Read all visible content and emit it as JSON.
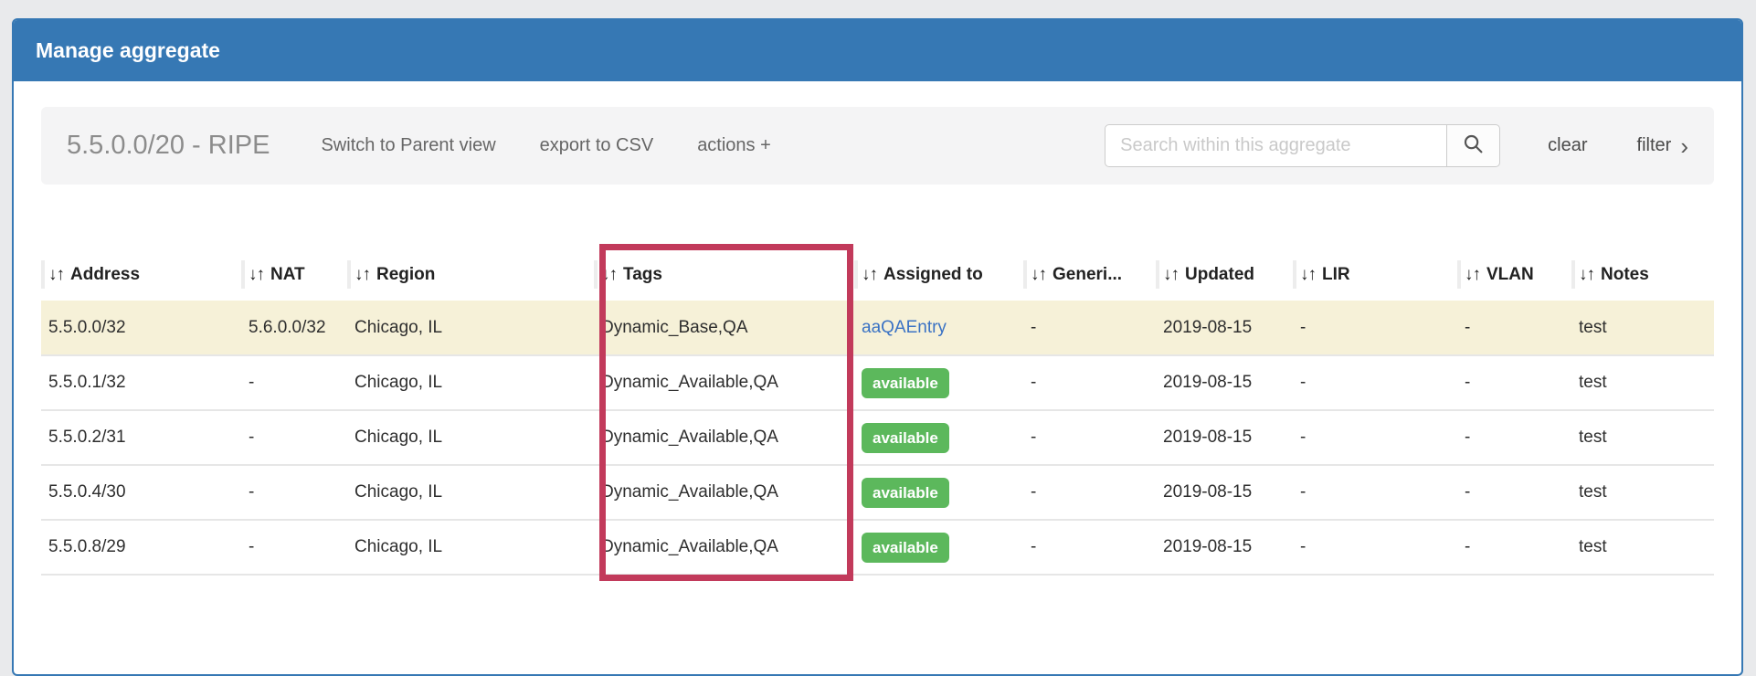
{
  "panel": {
    "title": "Manage aggregate"
  },
  "toolbar": {
    "aggregate_label": "5.5.0.0/20 - RIPE",
    "switch_view_label": "Switch to Parent view",
    "export_csv_label": "export to CSV",
    "actions_label": "actions +",
    "search_placeholder": "Search within this aggregate",
    "search_value": "",
    "clear_label": "clear",
    "filter_label": "filter",
    "filter_chevron": "›"
  },
  "table": {
    "sort_icon": "↓↑",
    "columns": [
      {
        "key": "address",
        "label": "Address"
      },
      {
        "key": "nat",
        "label": "NAT"
      },
      {
        "key": "region",
        "label": "Region"
      },
      {
        "key": "tags",
        "label": "Tags"
      },
      {
        "key": "assigned_to",
        "label": "Assigned to"
      },
      {
        "key": "generic",
        "label": "Generi..."
      },
      {
        "key": "updated",
        "label": "Updated"
      },
      {
        "key": "lir",
        "label": "LIR"
      },
      {
        "key": "vlan",
        "label": "VLAN"
      },
      {
        "key": "notes",
        "label": "Notes"
      }
    ],
    "rows": [
      {
        "highlighted": true,
        "cells": [
          {
            "text": "5.5.0.0/32"
          },
          {
            "text": "5.6.0.0/32"
          },
          {
            "text": "Chicago, IL"
          },
          {
            "text": "Dynamic_Base,QA"
          },
          {
            "type": "link",
            "text": "aaQAEntry"
          },
          {
            "text": "-"
          },
          {
            "text": "2019-08-15"
          },
          {
            "text": "-"
          },
          {
            "text": "-"
          },
          {
            "text": "test"
          }
        ]
      },
      {
        "highlighted": false,
        "cells": [
          {
            "text": "5.5.0.1/32"
          },
          {
            "text": "-"
          },
          {
            "text": "Chicago, IL"
          },
          {
            "text": "Dynamic_Available,QA"
          },
          {
            "type": "badge",
            "text": "available"
          },
          {
            "text": "-"
          },
          {
            "text": "2019-08-15"
          },
          {
            "text": "-"
          },
          {
            "text": "-"
          },
          {
            "text": "test"
          }
        ]
      },
      {
        "highlighted": false,
        "cells": [
          {
            "text": "5.5.0.2/31"
          },
          {
            "text": "-"
          },
          {
            "text": "Chicago, IL"
          },
          {
            "text": "Dynamic_Available,QA"
          },
          {
            "type": "badge",
            "text": "available"
          },
          {
            "text": "-"
          },
          {
            "text": "2019-08-15"
          },
          {
            "text": "-"
          },
          {
            "text": "-"
          },
          {
            "text": "test"
          }
        ]
      },
      {
        "highlighted": false,
        "cells": [
          {
            "text": "5.5.0.4/30"
          },
          {
            "text": "-"
          },
          {
            "text": "Chicago, IL"
          },
          {
            "text": "Dynamic_Available,QA"
          },
          {
            "type": "badge",
            "text": "available"
          },
          {
            "text": "-"
          },
          {
            "text": "2019-08-15"
          },
          {
            "text": "-"
          },
          {
            "text": "-"
          },
          {
            "text": "test"
          }
        ]
      },
      {
        "highlighted": false,
        "cells": [
          {
            "text": "5.5.0.8/29"
          },
          {
            "text": "-"
          },
          {
            "text": "Chicago, IL"
          },
          {
            "text": "Dynamic_Available,QA"
          },
          {
            "type": "badge",
            "text": "available"
          },
          {
            "text": "-"
          },
          {
            "text": "2019-08-15"
          },
          {
            "text": "-"
          },
          {
            "text": "-"
          },
          {
            "text": "test"
          }
        ]
      }
    ]
  },
  "annotation": {
    "highlighted_column": "Tags"
  },
  "colors": {
    "header_blue": "#3678b4",
    "highlight_pink": "#c23a5b",
    "badge_green": "#5cb85c",
    "row_yellow": "#f6f1d8",
    "link_blue": "#3a72c4",
    "page_bg": "#e9eaec"
  }
}
